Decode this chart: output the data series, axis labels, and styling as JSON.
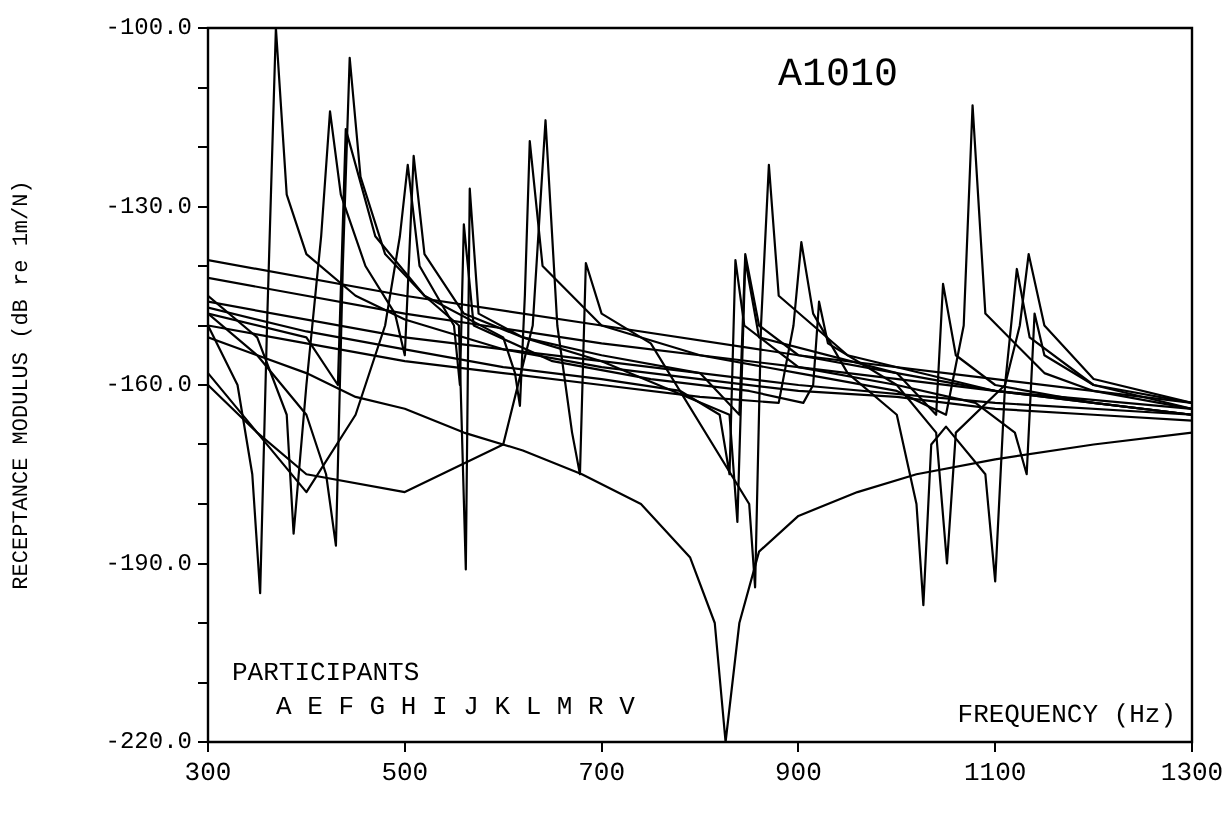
{
  "chart_data": {
    "type": "line",
    "title": "A1010",
    "xlabel": "FREQUENCY (Hz)",
    "ylabel": "RECEPTANCE MODULUS (dB re 1m/N)",
    "annotations": [
      "PARTICIPANTS",
      "A E F G H I J K L M R V"
    ],
    "xlim": [
      300,
      1300
    ],
    "xticks": [
      300,
      500,
      700,
      900,
      1100,
      1300
    ],
    "ylim": [
      -220,
      -100
    ],
    "yticks": [
      {
        "value": -220,
        "label": "-220.0"
      },
      {
        "value": -210,
        "label": null
      },
      {
        "value": -200,
        "label": null
      },
      {
        "value": -190,
        "label": "-190.0"
      },
      {
        "value": -180,
        "label": null
      },
      {
        "value": -170,
        "label": null
      },
      {
        "value": -160,
        "label": "-160.0"
      },
      {
        "value": -150,
        "label": null
      },
      {
        "value": -140,
        "label": null
      },
      {
        "value": -130,
        "label": "-130.0"
      },
      {
        "value": -120,
        "label": null
      },
      {
        "value": -110,
        "label": null
      },
      {
        "value": -100,
        "label": "-100.0"
      }
    ],
    "grid": false,
    "legend": false,
    "marker": "none",
    "line_style": "solid",
    "series": [
      {
        "color": "#000000",
        "x": [
          300,
          350,
          400,
          450,
          500,
          560,
          620,
          680,
          740,
          790,
          815,
          826,
          840,
          860,
          900,
          960,
          1020,
          1100,
          1200,
          1300
        ],
        "values": [
          -152,
          -155,
          -158,
          -162,
          -164,
          -168,
          -171,
          -175,
          -180,
          -189,
          -200,
          -220,
          -200,
          -188,
          -182,
          -178,
          -175,
          -172.5,
          -170,
          -168
        ]
      },
      {
        "color": "#000000",
        "x": [
          300,
          500,
          700,
          900,
          1100,
          1300
        ],
        "values": [
          -139,
          -145,
          -150,
          -155,
          -159,
          -163
        ]
      },
      {
        "color": "#000000",
        "x": [
          300,
          500,
          700,
          900,
          1100,
          1300
        ],
        "values": [
          -142,
          -148,
          -153,
          -157,
          -161,
          -164
        ]
      },
      {
        "color": "#000000",
        "x": [
          300,
          500,
          700,
          900,
          1100,
          1300
        ],
        "values": [
          -146,
          -152,
          -156,
          -160,
          -163,
          -165
        ]
      },
      {
        "color": "#000000",
        "x": [
          300,
          330,
          345,
          353,
          360,
          369,
          380,
          400,
          450,
          500,
          600,
          700,
          800,
          900,
          1000,
          1100,
          1200,
          1300
        ],
        "values": [
          -150,
          -160,
          -175,
          -195,
          -150,
          -100,
          -128,
          -138,
          -145,
          -149,
          -154,
          -157,
          -159,
          -161,
          -162,
          -164,
          -165,
          -166
        ]
      },
      {
        "color": "#000000",
        "x": [
          300,
          350,
          400,
          420,
          430,
          437,
          444,
          455,
          480,
          520,
          555,
          562,
          566,
          575,
          620,
          700,
          800,
          840,
          846,
          860,
          900,
          1000,
          1100,
          1200,
          1300
        ],
        "values": [
          -148,
          -155,
          -165,
          -175,
          -187,
          -140,
          -105,
          -125,
          -138,
          -145,
          -150,
          -191,
          -127,
          -148,
          -152,
          -155,
          -158,
          -165,
          -138,
          -150,
          -155,
          -158,
          -161,
          -163,
          -165
        ]
      },
      {
        "color": "#000000",
        "x": [
          300,
          350,
          380,
          387,
          400,
          415,
          424,
          435,
          460,
          490,
          500,
          509,
          520,
          560,
          620,
          700,
          830,
          838,
          846,
          860,
          1000,
          1040,
          1047,
          1060,
          1100,
          1200,
          1300
        ],
        "values": [
          -145,
          -152,
          -165,
          -185,
          -160,
          -135,
          -114,
          -128,
          -140,
          -148,
          -155,
          -121.5,
          -138,
          -148,
          -152,
          -156,
          -165,
          -183,
          -139,
          -152,
          -158,
          -165,
          -143,
          -155,
          -160,
          -163,
          -165
        ]
      },
      {
        "color": "#000000",
        "x": [
          300,
          400,
          432,
          440,
          470,
          520,
          600,
          612,
          617,
          622,
          627,
          640,
          700,
          800,
          900,
          1000,
          1050,
          1068,
          1077,
          1090,
          1150,
          1200,
          1300
        ],
        "values": [
          -148,
          -152,
          -160,
          -117,
          -135,
          -145,
          -152,
          -158,
          -163.5,
          -145,
          -119,
          -140,
          -150,
          -155,
          -158,
          -161,
          -165,
          -150,
          -113,
          -148,
          -158,
          -161,
          -164
        ]
      },
      {
        "color": "#000000",
        "x": [
          300,
          350,
          400,
          500,
          600,
          630,
          643,
          655,
          670,
          678,
          684,
          700,
          750,
          850,
          856,
          862,
          870,
          880,
          950,
          1100,
          1200,
          1300
        ],
        "values": [
          -160,
          -168,
          -175,
          -178,
          -170,
          -150,
          -115.5,
          -150,
          -168,
          -175,
          -139.5,
          -148,
          -153,
          -180,
          -194,
          -150,
          -123,
          -145,
          -155,
          -161,
          -163,
          -165
        ]
      },
      {
        "color": "#000000",
        "x": [
          300,
          400,
          500,
          600,
          700,
          800,
          880,
          895,
          903,
          915,
          950,
          1000,
          1020,
          1027,
          1035,
          1050,
          1090,
          1100,
          1110,
          1122,
          1135,
          1200,
          1300
        ],
        "values": [
          -150,
          -153,
          -156,
          -158,
          -160,
          -162,
          -163,
          -150,
          -136,
          -148,
          -158,
          -165,
          -180,
          -197,
          -170,
          -167,
          -175,
          -193,
          -160,
          -140.5,
          -152,
          -160,
          -164
        ]
      },
      {
        "color": "#000000",
        "x": [
          300,
          350,
          400,
          450,
          480,
          495,
          503,
          515,
          550,
          556,
          560,
          570,
          650,
          750,
          850,
          905,
          915,
          921,
          930,
          1000,
          1040,
          1051,
          1060,
          1110,
          1125,
          1134,
          1150,
          1200,
          1300
        ],
        "values": [
          -158,
          -168,
          -178,
          -165,
          -150,
          -135,
          -123,
          -140,
          -150,
          -160,
          -133,
          -150,
          -156,
          -159,
          -161,
          -163,
          -160,
          -146,
          -153,
          -160,
          -168,
          -190,
          -168,
          -160,
          -150,
          -138,
          -150,
          -159,
          -163
        ]
      },
      {
        "color": "#000000",
        "x": [
          300,
          400,
          500,
          600,
          700,
          780,
          820,
          830,
          836,
          845,
          900,
          1000,
          1080,
          1120,
          1132,
          1140,
          1150,
          1200,
          1300
        ],
        "values": [
          -147,
          -151,
          -154,
          -157,
          -159,
          -161,
          -165,
          -175,
          -139,
          -150,
          -157,
          -160,
          -163,
          -168,
          -175,
          -148,
          -155,
          -160,
          -163
        ]
      }
    ]
  }
}
